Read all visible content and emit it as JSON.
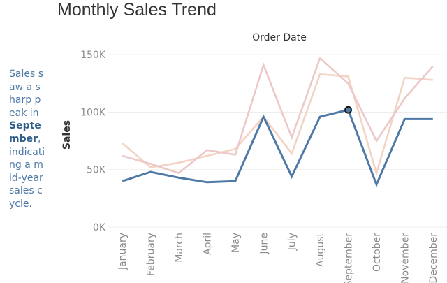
{
  "page": {
    "title": "Monthly Sales Trend",
    "annotation": {
      "before": "Sales saw a sharp peak in ",
      "highlight": "September",
      "after": ", indicating a mid-year sales cycle."
    }
  },
  "chart_data": {
    "type": "line",
    "column_header": "Order Date",
    "ylabel": "Sales",
    "xlabel": "",
    "categories": [
      "January",
      "February",
      "March",
      "April",
      "May",
      "June",
      "July",
      "August",
      "September",
      "October",
      "November",
      "December"
    ],
    "y_ticks": [
      0,
      50000,
      100000,
      150000
    ],
    "y_tick_labels": [
      "0K",
      "50K",
      "100K",
      "150K"
    ],
    "ylim": [
      0,
      155000
    ],
    "grid": true,
    "series": [
      {
        "color": "#4e79a7",
        "emphasis": true,
        "values": [
          40000,
          48000,
          43000,
          39000,
          40000,
          96000,
          44000,
          96000,
          102000,
          37000,
          94000,
          94000
        ]
      },
      {
        "color": "#f2d3c4",
        "emphasis": false,
        "values": [
          73000,
          52000,
          56000,
          62000,
          68000,
          96000,
          64000,
          133000,
          131000,
          47000,
          130000,
          128000
        ]
      },
      {
        "color": "#ecc8c8",
        "emphasis": false,
        "values": [
          62000,
          55000,
          47000,
          67000,
          63000,
          141000,
          78000,
          147000,
          125000,
          75000,
          112000,
          140000
        ]
      }
    ],
    "highlight_point": {
      "category": "September",
      "value": 102000
    }
  }
}
